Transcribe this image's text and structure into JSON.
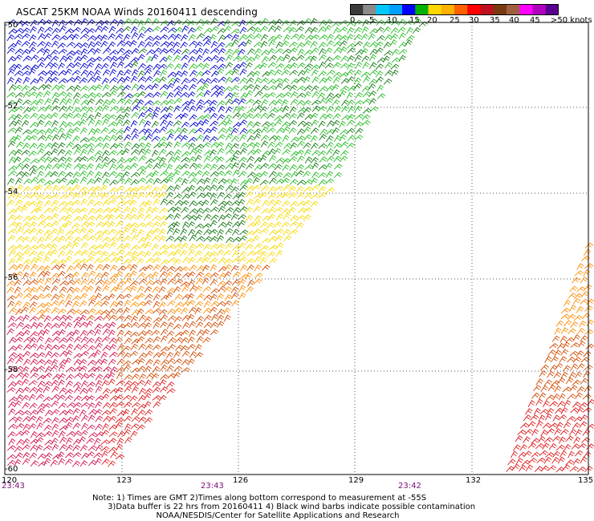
{
  "title": "ASCAT 25KM NOAA Winds 20160411 descending",
  "legend": {
    "unit": ">50 knots",
    "ticks": [
      "0",
      "5",
      "10",
      "15",
      "20",
      "25",
      "30",
      "35",
      "40",
      "45"
    ],
    "colors": [
      "#3a3a3a",
      "#8a8a8a",
      "#00c8ff",
      "#00a0ff",
      "#0000ff",
      "#00b000",
      "#ffd700",
      "#ffb000",
      "#ff6000",
      "#ff0000",
      "#c01020",
      "#7a3a10",
      "#a06040",
      "#ff00ff",
      "#b000c0",
      "#5a0090"
    ]
  },
  "axes": {
    "lat_labels": [
      "-50",
      "-52",
      "-54",
      "-56",
      "-58",
      "-60"
    ],
    "lon_labels": [
      "120",
      "123",
      "126",
      "129",
      "132",
      "135"
    ],
    "time_labels": [
      "23:43",
      "23:43",
      "23:42"
    ]
  },
  "notes": [
    "Note: 1) Times are GMT 2)Times along bottom correspond to measurement at -55S",
    "      3)Data buffer is 22 hrs from 20160411 4) Black wind barbs indicate possible contamination",
    "                         NOAA/NESDIS/Center for Satellite Applications and Research"
  ],
  "wind_colors": {
    "blue": "#0000cc",
    "light_green": "#22bb22",
    "dark_green": "#117711",
    "yellow": "#f5d800",
    "orange": "#ff8c00",
    "dark_orange": "#d04a00",
    "red": "#dd1a1a",
    "magenta": "#d0104a"
  }
}
